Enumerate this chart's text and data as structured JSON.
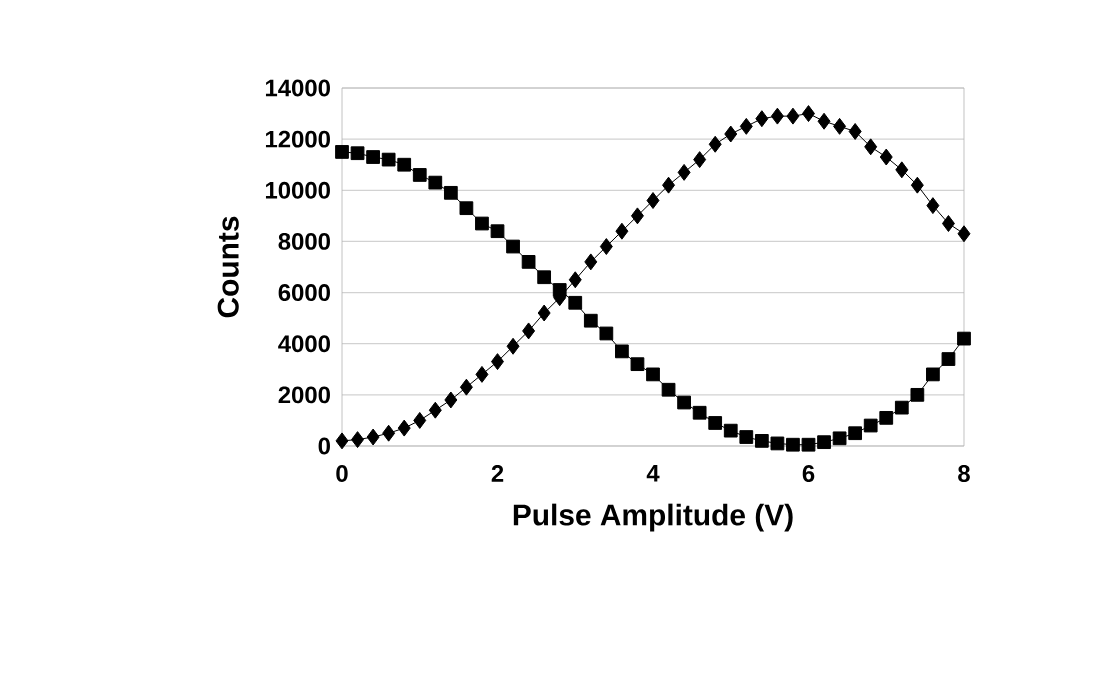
{
  "chart_data": {
    "type": "line",
    "xlabel": "Pulse Amplitude (V)",
    "ylabel": "Counts",
    "xlim": [
      0,
      8
    ],
    "xticks": [
      0,
      2,
      4,
      6,
      8
    ],
    "ylim": [
      0,
      14000
    ],
    "yticks": [
      0,
      2000,
      4000,
      6000,
      8000,
      10000,
      12000,
      14000
    ],
    "grid": "y",
    "x": [
      0,
      0.2,
      0.4,
      0.6,
      0.8,
      1.0,
      1.2,
      1.4,
      1.6,
      1.8,
      2.0,
      2.2,
      2.4,
      2.6,
      2.8,
      3.0,
      3.2,
      3.4,
      3.6,
      3.8,
      4.0,
      4.2,
      4.4,
      4.6,
      4.8,
      5.0,
      5.2,
      5.4,
      5.6,
      5.8,
      6.0,
      6.2,
      6.4,
      6.6,
      6.8,
      7.0,
      7.2,
      7.4,
      7.6,
      7.8,
      8.0
    ],
    "series": [
      {
        "color": "#000000",
        "marker": "square",
        "values": [
          11500,
          11450,
          11300,
          11200,
          11000,
          10600,
          10300,
          9900,
          9300,
          8700,
          8400,
          7800,
          7200,
          6600,
          6100,
          5600,
          4900,
          4400,
          3700,
          3200,
          2800,
          2200,
          1700,
          1300,
          900,
          600,
          350,
          200,
          100,
          50,
          50,
          150,
          300,
          500,
          800,
          1100,
          1500,
          2000,
          2800,
          3400,
          4200
        ]
      },
      {
        "color": "#000000",
        "marker": "diamond",
        "values": [
          200,
          250,
          350,
          500,
          700,
          1000,
          1400,
          1800,
          2300,
          2800,
          3300,
          3900,
          4500,
          5200,
          5800,
          6500,
          7200,
          7800,
          8400,
          9000,
          9600,
          10200,
          10700,
          11200,
          11800,
          12200,
          12500,
          12800,
          12900,
          12900,
          13000,
          12700,
          12500,
          12300,
          11700,
          11300,
          10800,
          10200,
          9400,
          8700,
          8300
        ]
      }
    ]
  }
}
